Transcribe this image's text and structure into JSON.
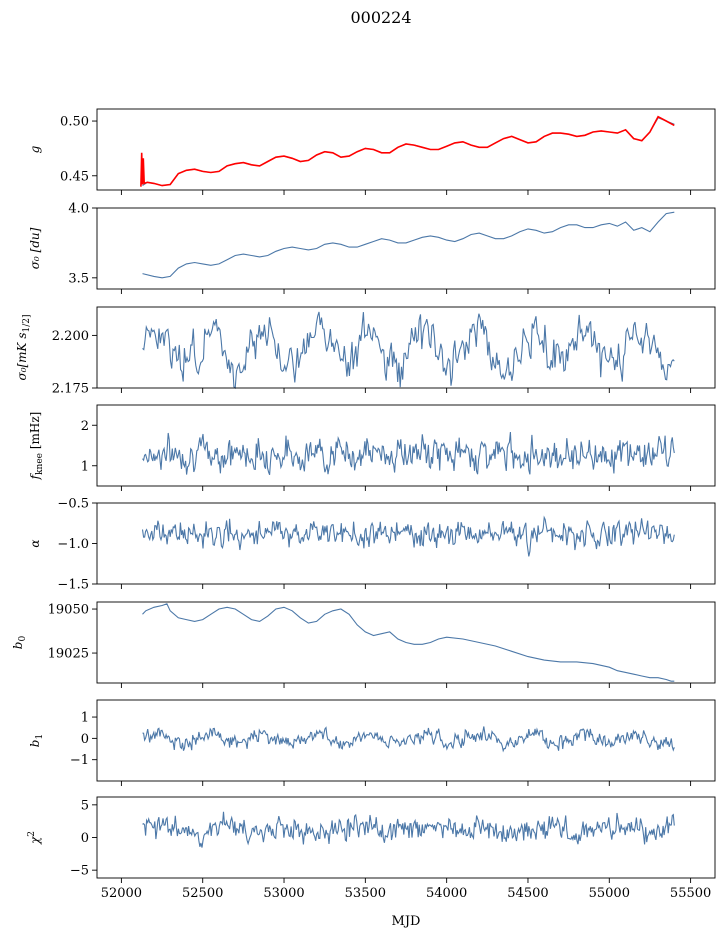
{
  "figure": {
    "title": "000224",
    "xlabel": "MJD"
  },
  "chart_data": [
    {
      "type": "line",
      "ylabel_main": "g",
      "ylabel_sub": "",
      "xlim": [
        51850,
        55650
      ],
      "ylim": [
        0.437,
        0.511
      ],
      "yticks": [
        0.45,
        0.5
      ],
      "ytick_labels": [
        "0.45",
        "0.50"
      ],
      "series": [
        {
          "color": "#4c78a8",
          "x": [
            52130,
            52160,
            52200,
            52250,
            52300,
            52350,
            52400,
            52450,
            52500,
            52550,
            52600,
            52650,
            52700,
            52750,
            52800,
            52850,
            52900,
            52950,
            53000,
            53050,
            53100,
            53150,
            53200,
            53250,
            53300,
            53350,
            53400,
            53450,
            53500,
            53550,
            53600,
            53650,
            53700,
            53750,
            53800,
            53850,
            53900,
            53950,
            54000,
            54050,
            54100,
            54150,
            54200,
            54250,
            54300,
            54350,
            54400,
            54450,
            54500,
            54550,
            54600,
            54650,
            54700,
            54750,
            54800,
            54850,
            54900,
            54950,
            55000,
            55050,
            55100,
            55150,
            55200,
            55250,
            55300,
            55350,
            55400
          ],
          "y": [
            0.441,
            0.444,
            0.443,
            0.441,
            0.442,
            0.452,
            0.455,
            0.456,
            0.454,
            0.453,
            0.454,
            0.459,
            0.461,
            0.462,
            0.46,
            0.459,
            0.463,
            0.467,
            0.468,
            0.466,
            0.463,
            0.464,
            0.469,
            0.472,
            0.471,
            0.467,
            0.468,
            0.472,
            0.475,
            0.474,
            0.471,
            0.471,
            0.476,
            0.479,
            0.478,
            0.476,
            0.474,
            0.474,
            0.477,
            0.48,
            0.481,
            0.478,
            0.476,
            0.476,
            0.48,
            0.484,
            0.486,
            0.483,
            0.48,
            0.481,
            0.486,
            0.489,
            0.489,
            0.488,
            0.486,
            0.487,
            0.49,
            0.491,
            0.49,
            0.489,
            0.492,
            0.484,
            0.482,
            0.49,
            0.503,
            0.5,
            0.497
          ]
        },
        {
          "color": "#ff0000",
          "x": [
            52120,
            52125,
            52130,
            52135,
            52140,
            52160,
            52200,
            52250,
            52300,
            52350,
            52400,
            52450,
            52500,
            52550,
            52600,
            52650,
            52700,
            52750,
            52800,
            52850,
            52900,
            52950,
            53000,
            53050,
            53100,
            53150,
            53200,
            53250,
            53300,
            53350,
            53400,
            53450,
            53500,
            53550,
            53600,
            53650,
            53700,
            53750,
            53800,
            53850,
            53900,
            53950,
            54000,
            54050,
            54100,
            54150,
            54200,
            54250,
            54300,
            54350,
            54400,
            54450,
            54500,
            54550,
            54600,
            54650,
            54700,
            54750,
            54800,
            54850,
            54900,
            54950,
            55000,
            55050,
            55100,
            55150,
            55200,
            55250,
            55300,
            55350,
            55400
          ],
          "y": [
            0.44,
            0.471,
            0.442,
            0.466,
            0.443,
            0.444,
            0.443,
            0.441,
            0.442,
            0.452,
            0.455,
            0.456,
            0.454,
            0.453,
            0.454,
            0.459,
            0.461,
            0.462,
            0.46,
            0.459,
            0.463,
            0.467,
            0.468,
            0.466,
            0.463,
            0.464,
            0.469,
            0.472,
            0.471,
            0.467,
            0.468,
            0.472,
            0.475,
            0.474,
            0.471,
            0.471,
            0.476,
            0.479,
            0.478,
            0.476,
            0.474,
            0.474,
            0.477,
            0.48,
            0.481,
            0.478,
            0.476,
            0.476,
            0.48,
            0.484,
            0.486,
            0.483,
            0.48,
            0.481,
            0.486,
            0.489,
            0.489,
            0.488,
            0.486,
            0.487,
            0.49,
            0.491,
            0.49,
            0.489,
            0.492,
            0.484,
            0.482,
            0.49,
            0.504,
            0.5,
            0.496
          ]
        }
      ]
    },
    {
      "type": "line",
      "ylabel_main": "σ₀ [du]",
      "ylabel_sub": "",
      "xlim": [
        51850,
        55650
      ],
      "ylim": [
        3.42,
        4.0
      ],
      "yticks": [
        3.5,
        4.0
      ],
      "ytick_labels": [
        "3.5",
        "4.0"
      ],
      "series": [
        {
          "color": "#4c78a8",
          "x": [
            52130,
            52200,
            52250,
            52300,
            52350,
            52400,
            52450,
            52500,
            52550,
            52600,
            52650,
            52700,
            52750,
            52800,
            52850,
            52900,
            52950,
            53000,
            53050,
            53100,
            53150,
            53200,
            53250,
            53300,
            53350,
            53400,
            53450,
            53500,
            53550,
            53600,
            53650,
            53700,
            53750,
            53800,
            53850,
            53900,
            53950,
            54000,
            54050,
            54100,
            54150,
            54200,
            54250,
            54300,
            54350,
            54400,
            54450,
            54500,
            54550,
            54600,
            54650,
            54700,
            54750,
            54800,
            54850,
            54900,
            54950,
            55000,
            55050,
            55100,
            55150,
            55200,
            55250,
            55300,
            55350,
            55400
          ],
          "y": [
            3.53,
            3.51,
            3.5,
            3.51,
            3.57,
            3.6,
            3.61,
            3.6,
            3.59,
            3.6,
            3.63,
            3.66,
            3.67,
            3.66,
            3.65,
            3.66,
            3.69,
            3.71,
            3.72,
            3.71,
            3.7,
            3.71,
            3.74,
            3.75,
            3.74,
            3.72,
            3.72,
            3.74,
            3.76,
            3.78,
            3.77,
            3.75,
            3.75,
            3.77,
            3.79,
            3.8,
            3.79,
            3.77,
            3.76,
            3.78,
            3.81,
            3.82,
            3.8,
            3.78,
            3.78,
            3.8,
            3.83,
            3.85,
            3.84,
            3.82,
            3.83,
            3.86,
            3.88,
            3.88,
            3.86,
            3.86,
            3.88,
            3.89,
            3.87,
            3.9,
            3.84,
            3.86,
            3.83,
            3.9,
            3.96,
            3.97
          ]
        }
      ]
    },
    {
      "type": "line",
      "ylabel_main": "σ₀[mK s",
      "ylabel_sub": "1/2]",
      "xlim": [
        51850,
        55650
      ],
      "ylim": [
        2.175,
        2.2135
      ],
      "yticks": [
        2.175,
        2.2
      ],
      "ytick_labels": [
        "2.175",
        "2.200"
      ],
      "noise": {
        "seed": 3,
        "n": 420,
        "x0": 52130,
        "x1": 55400,
        "base": 2.194,
        "amp": 0.008,
        "period": 330,
        "noise": 0.0045
      },
      "series": [
        {
          "color": "#4c78a8"
        }
      ]
    },
    {
      "type": "line",
      "ylabel_main": "f",
      "ylabel_sub": "knee",
      "ylabel_tail": " [mHz]",
      "xlim": [
        51850,
        55650
      ],
      "ylim": [
        0.5,
        2.5
      ],
      "yticks": [
        1,
        2
      ],
      "ytick_labels": [
        "1",
        "2"
      ],
      "noise": {
        "seed": 7,
        "n": 520,
        "x0": 52130,
        "x1": 55400,
        "base": 1.3,
        "amp": 0.0,
        "period": 330,
        "noise": 0.19
      },
      "series": [
        {
          "color": "#4c78a8"
        }
      ]
    },
    {
      "type": "line",
      "ylabel_main": "α",
      "ylabel_sub": "",
      "xlim": [
        51850,
        55650
      ],
      "ylim": [
        -1.5,
        -0.5
      ],
      "yticks": [
        -1.5,
        -1.0,
        -0.5
      ],
      "ytick_labels": [
        "−1.5",
        "−1.0",
        "−0.5"
      ],
      "noise": {
        "seed": 11,
        "n": 520,
        "x0": 52130,
        "x1": 55400,
        "base": -0.88,
        "amp": 0.0,
        "period": 330,
        "noise": 0.075
      },
      "series": [
        {
          "color": "#4c78a8"
        }
      ]
    },
    {
      "type": "line",
      "ylabel_main": "b",
      "ylabel_sub": "0",
      "xlim": [
        51850,
        55650
      ],
      "ylim": [
        19008,
        19054
      ],
      "yticks": [
        19025,
        19050
      ],
      "ytick_labels": [
        "19025",
        "19050"
      ],
      "series": [
        {
          "color": "#4c78a8",
          "x": [
            52130,
            52150,
            52200,
            52250,
            52280,
            52300,
            52350,
            52400,
            52450,
            52500,
            52550,
            52600,
            52650,
            52700,
            52750,
            52800,
            52850,
            52900,
            52950,
            53000,
            53050,
            53100,
            53150,
            53200,
            53250,
            53300,
            53350,
            53400,
            53450,
            53500,
            53550,
            53600,
            53650,
            53700,
            53750,
            53800,
            53850,
            53900,
            53950,
            54000,
            54100,
            54200,
            54300,
            54400,
            54500,
            54600,
            54700,
            54800,
            54900,
            55000,
            55050,
            55100,
            55150,
            55200,
            55250,
            55300,
            55350,
            55380,
            55400
          ],
          "y": [
            19047,
            19049,
            19051,
            19052,
            19053,
            19049,
            19045,
            19044,
            19043,
            19044,
            19047,
            19050,
            19051,
            19050,
            19047,
            19044,
            19043,
            19046,
            19050,
            19051,
            19049,
            19045,
            19042,
            19043,
            19047,
            19049,
            19050,
            19047,
            19041,
            19037,
            19035,
            19036,
            19037,
            19033,
            19031,
            19030,
            19030,
            19031,
            19033,
            19034,
            19033,
            19031,
            19029,
            19026,
            19023,
            19021,
            19020,
            19020,
            19019,
            19017,
            19015,
            19014,
            19013,
            19012,
            19011,
            19011,
            19010,
            19009,
            19009
          ]
        }
      ]
    },
    {
      "type": "line",
      "ylabel_main": "b",
      "ylabel_sub": "1",
      "xlim": [
        51850,
        55650
      ],
      "ylim": [
        -2.0,
        1.8
      ],
      "yticks": [
        -1,
        0,
        1
      ],
      "ytick_labels": [
        "−1",
        "0",
        "1"
      ],
      "noise": {
        "seed": 19,
        "n": 520,
        "x0": 52130,
        "x1": 55400,
        "base": 0.0,
        "amp": 0.22,
        "period": 330,
        "noise": 0.17
      },
      "series": [
        {
          "color": "#4c78a8"
        }
      ]
    },
    {
      "type": "line",
      "ylabel_main": "χ",
      "ylabel_sub": "",
      "ylabel_sup": "2",
      "xlim": [
        51850,
        55650
      ],
      "ylim": [
        -6.2,
        6.2
      ],
      "yticks": [
        -5,
        0,
        5
      ],
      "ytick_labels": [
        "−5",
        "0",
        "5"
      ],
      "xticks": [
        52000,
        52500,
        53000,
        53500,
        54000,
        54500,
        55000,
        55500
      ],
      "xtick_labels": [
        "52000",
        "52500",
        "53000",
        "53500",
        "54000",
        "54500",
        "55000",
        "55500"
      ],
      "noise": {
        "seed": 23,
        "n": 520,
        "x0": 52130,
        "x1": 55400,
        "base": 1.3,
        "amp": 0.35,
        "period": 400,
        "noise": 0.9
      },
      "series": [
        {
          "color": "#4c78a8"
        }
      ]
    }
  ]
}
